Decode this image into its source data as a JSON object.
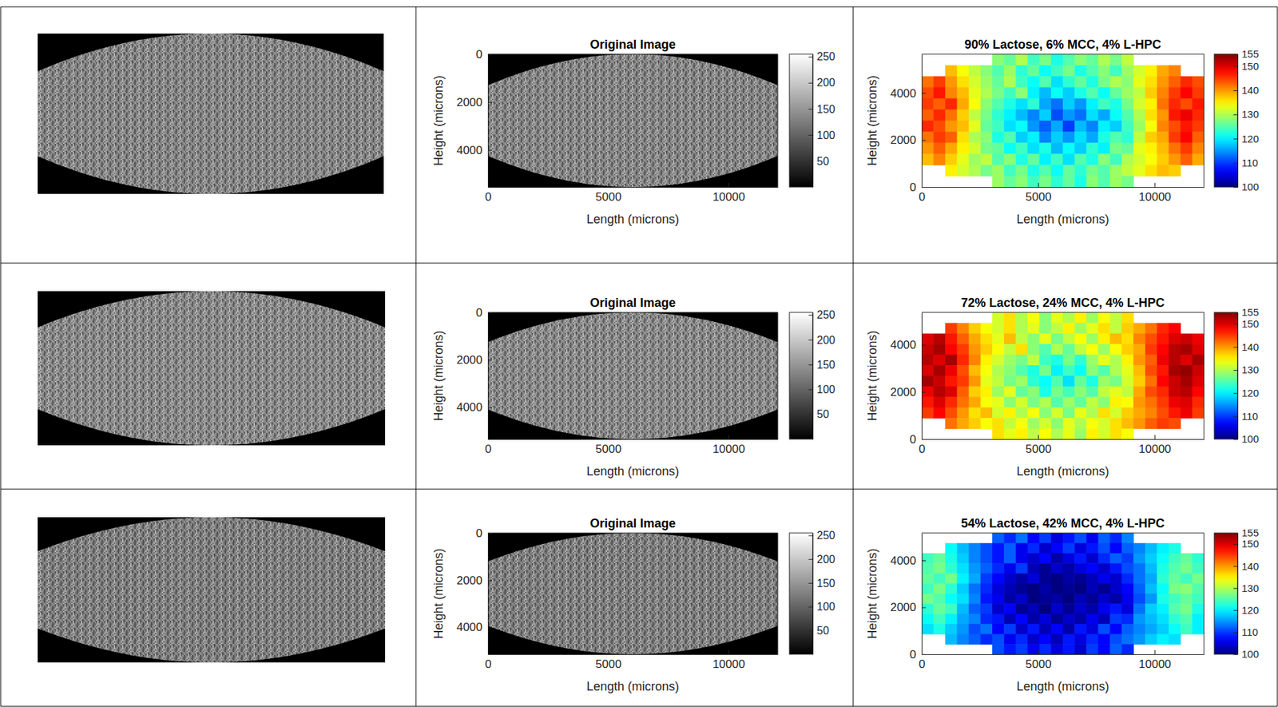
{
  "chart_data": [
    {
      "type": "image",
      "color": "#868686"
    },
    {
      "type": "image",
      "title": "Original Image",
      "xlabel": "Length (microns)",
      "ylabel": "Height (microns)",
      "xlim": [
        0,
        12050
      ],
      "ylim": [
        5550,
        0
      ],
      "xticks": [
        0,
        5000,
        10000
      ],
      "yticks": [
        0,
        2000,
        4000
      ],
      "color": "#868686",
      "colorbar": {
        "range": [
          0,
          255
        ],
        "ticks": [
          50,
          100,
          150,
          200,
          250
        ]
      }
    },
    {
      "type": "heatmap",
      "title": "90% Lactose, 6% MCC, 4% L-HPC",
      "xlabel": "Length (microns)",
      "ylabel": "Height (microns)",
      "xlim": [
        0,
        12120
      ],
      "ylim": [
        0,
        5650
      ],
      "xticks": [
        0,
        5000,
        10000
      ],
      "yticks": [
        0,
        2000,
        4000
      ],
      "colorbar": {
        "range": [
          100,
          155
        ],
        "ticks": [
          100,
          110,
          120,
          130,
          140,
          150,
          155
        ]
      },
      "cells": [
        [
          null,
          null,
          null,
          null,
          null,
          null,
          128,
          126,
          130,
          124,
          127,
          122,
          125,
          128,
          126,
          130,
          127,
          131,
          null,
          null,
          null,
          null,
          null,
          null
        ],
        [
          null,
          null,
          138,
          134,
          131,
          128,
          125,
          129,
          123,
          126,
          121,
          124,
          127,
          122,
          125,
          128,
          124,
          129,
          132,
          135,
          139,
          141,
          null,
          null
        ],
        [
          142,
          145,
          140,
          136,
          132,
          129,
          126,
          130,
          124,
          121,
          125,
          119,
          123,
          126,
          122,
          127,
          130,
          128,
          133,
          136,
          140,
          143,
          146,
          144
        ],
        [
          144,
          147,
          141,
          138,
          133,
          130,
          127,
          124,
          128,
          120,
          117,
          121,
          118,
          122,
          125,
          121,
          126,
          129,
          131,
          137,
          141,
          145,
          148,
          145
        ],
        [
          145,
          143,
          146,
          139,
          134,
          128,
          125,
          122,
          119,
          123,
          116,
          113,
          118,
          115,
          120,
          124,
          122,
          127,
          132,
          135,
          142,
          146,
          144,
          147
        ],
        [
          143,
          146,
          142,
          137,
          131,
          127,
          123,
          120,
          117,
          114,
          118,
          111,
          115,
          113,
          119,
          116,
          121,
          125,
          130,
          136,
          140,
          147,
          149,
          146
        ],
        [
          146,
          144,
          140,
          138,
          133,
          126,
          124,
          119,
          121,
          115,
          112,
          116,
          110,
          117,
          114,
          120,
          118,
          124,
          129,
          134,
          141,
          144,
          147,
          145
        ],
        [
          142,
          145,
          143,
          136,
          130,
          128,
          122,
          125,
          118,
          120,
          114,
          118,
          115,
          119,
          116,
          122,
          125,
          123,
          131,
          137,
          139,
          145,
          148,
          143
        ],
        [
          140,
          143,
          139,
          135,
          132,
          127,
          126,
          121,
          124,
          119,
          122,
          117,
          121,
          118,
          123,
          120,
          127,
          126,
          133,
          135,
          138,
          142,
          145,
          141
        ],
        [
          138,
          141,
          137,
          133,
          129,
          131,
          125,
          128,
          122,
          126,
          120,
          124,
          119,
          125,
          122,
          128,
          124,
          130,
          132,
          134,
          137,
          140,
          143,
          139
        ],
        [
          null,
          null,
          135,
          132,
          130,
          127,
          129,
          124,
          127,
          122,
          125,
          121,
          126,
          123,
          127,
          125,
          129,
          131,
          133,
          136,
          138,
          137,
          null,
          null
        ],
        [
          null,
          null,
          null,
          null,
          null,
          null,
          129,
          126,
          128,
          124,
          127,
          123,
          126,
          122,
          128,
          125,
          129,
          127,
          null,
          null,
          null,
          null,
          null,
          null
        ]
      ]
    },
    {
      "type": "image",
      "color": "#8a8a8a"
    },
    {
      "type": "image",
      "title": "Original Image",
      "xlabel": "Length (microns)",
      "ylabel": "Height (microns)",
      "xlim": [
        0,
        12050
      ],
      "ylim": [
        5350,
        0
      ],
      "xticks": [
        0,
        5000,
        10000
      ],
      "yticks": [
        0,
        2000,
        4000
      ],
      "color": "#8a8a8a",
      "colorbar": {
        "range": [
          0,
          255
        ],
        "ticks": [
          50,
          100,
          150,
          200,
          250
        ]
      }
    },
    {
      "type": "heatmap",
      "title": "72% Lactose, 24% MCC, 4% L-HPC",
      "xlabel": "Length (microns)",
      "ylabel": "Height (microns)",
      "xlim": [
        0,
        12120
      ],
      "ylim": [
        0,
        5380
      ],
      "xticks": [
        0,
        5000,
        10000
      ],
      "yticks": [
        0,
        2000,
        4000
      ],
      "colorbar": {
        "range": [
          100,
          155
        ],
        "ticks": [
          100,
          110,
          120,
          130,
          140,
          150,
          155
        ]
      },
      "cells": [
        [
          null,
          null,
          null,
          null,
          null,
          null,
          132,
          136,
          130,
          134,
          128,
          133,
          130,
          135,
          129,
          134,
          131,
          136,
          null,
          null,
          null,
          null,
          null,
          null
        ],
        [
          null,
          null,
          145,
          141,
          137,
          134,
          132,
          136,
          130,
          133,
          128,
          131,
          135,
          129,
          133,
          136,
          131,
          137,
          139,
          142,
          146,
          148,
          null,
          null
        ],
        [
          150,
          152,
          147,
          143,
          139,
          136,
          133,
          138,
          131,
          128,
          133,
          127,
          131,
          134,
          129,
          135,
          138,
          136,
          141,
          144,
          147,
          150,
          151,
          149
        ],
        [
          151,
          153,
          148,
          145,
          140,
          137,
          134,
          131,
          136,
          128,
          125,
          130,
          126,
          131,
          134,
          129,
          134,
          137,
          139,
          145,
          148,
          152,
          153,
          150
        ],
        [
          152,
          150,
          153,
          146,
          141,
          135,
          132,
          129,
          127,
          131,
          124,
          122,
          127,
          123,
          129,
          133,
          130,
          135,
          140,
          143,
          149,
          152,
          150,
          153
        ],
        [
          150,
          153,
          149,
          144,
          138,
          134,
          130,
          128,
          125,
          122,
          127,
          120,
          124,
          121,
          128,
          125,
          130,
          133,
          138,
          144,
          147,
          153,
          154,
          151
        ],
        [
          153,
          151,
          147,
          145,
          140,
          133,
          131,
          127,
          129,
          123,
          121,
          125,
          119,
          126,
          122,
          129,
          127,
          132,
          137,
          142,
          148,
          151,
          153,
          150
        ],
        [
          149,
          152,
          150,
          143,
          137,
          135,
          129,
          133,
          126,
          128,
          122,
          127,
          124,
          128,
          125,
          131,
          133,
          131,
          139,
          144,
          146,
          151,
          152,
          148
        ],
        [
          147,
          150,
          146,
          142,
          139,
          134,
          133,
          128,
          132,
          127,
          130,
          125,
          129,
          126,
          131,
          128,
          135,
          134,
          140,
          142,
          145,
          149,
          150,
          146
        ],
        [
          145,
          148,
          144,
          140,
          136,
          138,
          132,
          135,
          130,
          134,
          128,
          132,
          127,
          133,
          130,
          136,
          132,
          137,
          139,
          141,
          144,
          147,
          149,
          145
        ],
        [
          null,
          null,
          142,
          139,
          137,
          134,
          136,
          131,
          134,
          129,
          132,
          128,
          133,
          130,
          134,
          132,
          136,
          138,
          140,
          143,
          145,
          144,
          null,
          null
        ],
        [
          null,
          null,
          null,
          null,
          null,
          null,
          136,
          133,
          135,
          131,
          134,
          130,
          133,
          129,
          135,
          132,
          136,
          134,
          null,
          null,
          null,
          null,
          null,
          null
        ]
      ]
    },
    {
      "type": "image",
      "color": "#7f7f7f"
    },
    {
      "type": "image",
      "title": "Original Image",
      "xlabel": "Length (microns)",
      "ylabel": "Height (microns)",
      "xlim": [
        0,
        12050
      ],
      "ylim": [
        5150,
        0
      ],
      "xticks": [
        0,
        5000,
        10000
      ],
      "yticks": [
        0,
        2000,
        4000
      ],
      "color": "#7f7f7f",
      "colorbar": {
        "range": [
          0,
          255
        ],
        "ticks": [
          50,
          100,
          150,
          200,
          250
        ]
      }
    },
    {
      "type": "heatmap",
      "title": "54% Lactose, 42% MCC, 4% L-HPC",
      "xlabel": "Length (microns)",
      "ylabel": "Height (microns)",
      "xlim": [
        0,
        12120
      ],
      "ylim": [
        0,
        5170
      ],
      "xticks": [
        0,
        5000,
        10000
      ],
      "yticks": [
        0,
        2000,
        4000
      ],
      "colorbar": {
        "range": [
          100,
          155
        ],
        "ticks": [
          100,
          110,
          120,
          130,
          140,
          150,
          155
        ]
      },
      "cells": [
        [
          null,
          null,
          null,
          null,
          null,
          null,
          112,
          109,
          113,
          107,
          110,
          105,
          108,
          111,
          106,
          112,
          109,
          114,
          null,
          null,
          null,
          null,
          null,
          null
        ],
        [
          null,
          null,
          121,
          117,
          114,
          111,
          108,
          112,
          106,
          109,
          104,
          107,
          110,
          105,
          108,
          111,
          107,
          112,
          114,
          117,
          120,
          122,
          null,
          null
        ],
        [
          124,
          126,
          122,
          118,
          114,
          111,
          108,
          112,
          106,
          104,
          107,
          102,
          105,
          108,
          104,
          109,
          112,
          110,
          115,
          118,
          121,
          124,
          126,
          123
        ],
        [
          125,
          127,
          123,
          119,
          115,
          112,
          109,
          106,
          110,
          103,
          101,
          104,
          102,
          105,
          107,
          104,
          108,
          111,
          113,
          117,
          122,
          125,
          127,
          124
        ],
        [
          126,
          124,
          127,
          120,
          116,
          110,
          107,
          104,
          102,
          105,
          101,
          100,
          102,
          101,
          103,
          106,
          104,
          109,
          113,
          116,
          123,
          126,
          124,
          127
        ],
        [
          124,
          127,
          123,
          118,
          113,
          109,
          105,
          103,
          101,
          100,
          102,
          100,
          101,
          100,
          103,
          101,
          104,
          107,
          112,
          117,
          121,
          127,
          128,
          125
        ],
        [
          127,
          125,
          121,
          119,
          114,
          108,
          106,
          102,
          104,
          100,
          101,
          102,
          100,
          103,
          101,
          104,
          102,
          106,
          111,
          115,
          122,
          124,
          126,
          124
        ],
        [
          123,
          126,
          124,
          117,
          112,
          110,
          104,
          107,
          101,
          103,
          100,
          104,
          101,
          104,
          102,
          106,
          108,
          105,
          113,
          118,
          120,
          125,
          127,
          122
        ],
        [
          121,
          124,
          120,
          116,
          114,
          109,
          108,
          103,
          107,
          102,
          105,
          101,
          104,
          102,
          106,
          103,
          110,
          109,
          115,
          117,
          119,
          123,
          125,
          120
        ],
        [
          119,
          122,
          118,
          115,
          111,
          113,
          107,
          110,
          104,
          108,
          103,
          107,
          102,
          108,
          105,
          111,
          107,
          112,
          114,
          116,
          118,
          121,
          124,
          120
        ],
        [
          null,
          null,
          117,
          114,
          112,
          109,
          111,
          106,
          109,
          104,
          107,
          103,
          108,
          105,
          109,
          107,
          111,
          113,
          115,
          118,
          120,
          119,
          null,
          null
        ],
        [
          null,
          null,
          null,
          null,
          null,
          null,
          111,
          108,
          110,
          106,
          109,
          105,
          108,
          104,
          110,
          107,
          112,
          109,
          null,
          null,
          null,
          null,
          null,
          null
        ]
      ]
    }
  ]
}
